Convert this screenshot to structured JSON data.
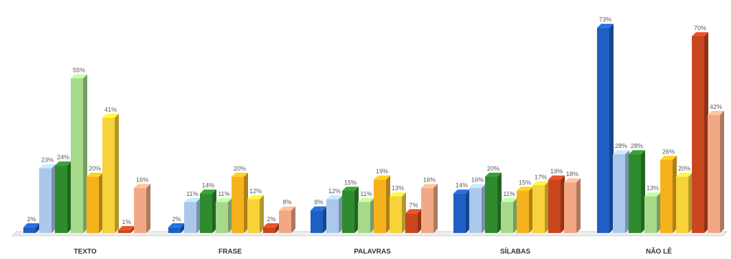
{
  "chart_data": {
    "type": "bar",
    "title": "",
    "xlabel": "",
    "ylabel": "",
    "ylim": [
      0,
      75
    ],
    "grid": false,
    "legend": "none",
    "categories": [
      "TEXTO",
      "FRASE",
      "PALAVRAS",
      "SÍLABAS",
      "NÃO LÊ"
    ],
    "series_colors": [
      "#1f5fc4",
      "#a9c8ec",
      "#2e8b2e",
      "#a6d98a",
      "#f5b21d",
      "#f7d23a",
      "#c9461f",
      "#f2a884"
    ],
    "series": [
      {
        "values": [
          2,
          2,
          8,
          14,
          73
        ],
        "labels": [
          "2%",
          "2%",
          "8%",
          "14%",
          "73%"
        ]
      },
      {
        "values": [
          23,
          11,
          12,
          16,
          28
        ],
        "labels": [
          "23%",
          "11%",
          "12%",
          "16%",
          "28%"
        ]
      },
      {
        "values": [
          24,
          14,
          15,
          20,
          28
        ],
        "labels": [
          "24%",
          "14%",
          "15%",
          "20%",
          "28%"
        ]
      },
      {
        "values": [
          55,
          11,
          11,
          11,
          13
        ],
        "labels": [
          "55%",
          "11%",
          "11%",
          "11%",
          "13%"
        ]
      },
      {
        "values": [
          20,
          20,
          19,
          15,
          26
        ],
        "labels": [
          "20%",
          "20%",
          "19%",
          "15%",
          "26%"
        ]
      },
      {
        "values": [
          41,
          12,
          13,
          17,
          20
        ],
        "labels": [
          "41%",
          "12%",
          "13%",
          "17%",
          "20%"
        ]
      },
      {
        "values": [
          1,
          2,
          7,
          19,
          70
        ],
        "labels": [
          "1%",
          "2%",
          "7%",
          "19%",
          "70%"
        ]
      },
      {
        "values": [
          16,
          8,
          16,
          18,
          42
        ],
        "labels": [
          "16%",
          "8%",
          "16%",
          "18%",
          "42%"
        ]
      }
    ]
  }
}
